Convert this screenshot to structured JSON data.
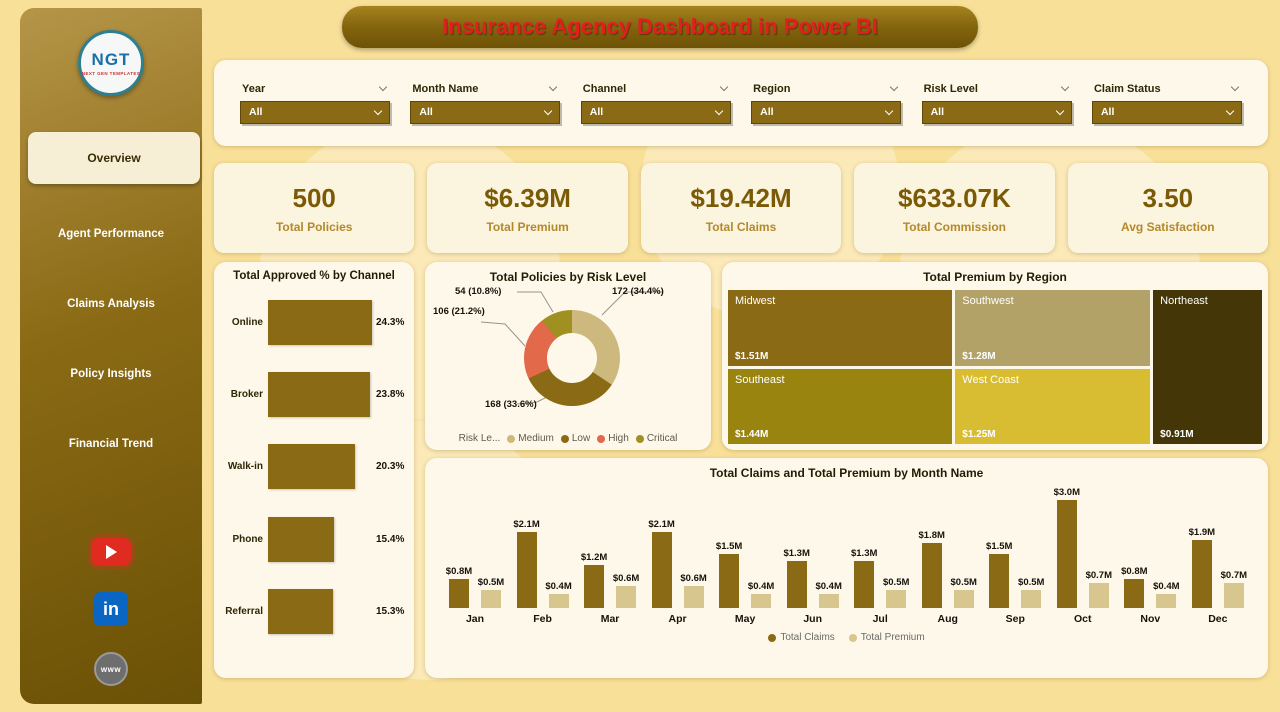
{
  "header": {
    "title": "Insurance Agency Dashboard in Power BI"
  },
  "sidebar": {
    "logo": {
      "text": "NGT",
      "subtext": "NEXT GEN TEMPLATES"
    },
    "items": [
      {
        "label": "Overview"
      },
      {
        "label": "Agent Performance"
      },
      {
        "label": "Claims Analysis"
      },
      {
        "label": "Policy Insights"
      },
      {
        "label": "Financial Trend"
      }
    ],
    "social": {
      "linkedin": "in",
      "website": "www"
    }
  },
  "filters": [
    {
      "label": "Year",
      "value": "All"
    },
    {
      "label": "Month Name",
      "value": "All"
    },
    {
      "label": "Channel",
      "value": "All"
    },
    {
      "label": "Region",
      "value": "All"
    },
    {
      "label": "Risk Level",
      "value": "All"
    },
    {
      "label": "Claim Status",
      "value": "All"
    }
  ],
  "kpis": [
    {
      "value": "500",
      "label": "Total Policies"
    },
    {
      "value": "$6.39M",
      "label": "Total Premium"
    },
    {
      "value": "$19.42M",
      "label": "Total Claims"
    },
    {
      "value": "$633.07K",
      "label": "Total Commission"
    },
    {
      "value": "3.50",
      "label": "Avg Satisfaction"
    }
  ],
  "chart_data": {
    "channel_bars": {
      "type": "bar",
      "title": "Total Approved % by Channel",
      "categories": [
        "Online",
        "Broker",
        "Walk-in",
        "Phone",
        "Referral"
      ],
      "values": [
        24.3,
        23.8,
        20.3,
        15.4,
        15.3
      ],
      "unit": "%",
      "bar_color": "#8a6a14",
      "orientation": "horizontal"
    },
    "donut": {
      "type": "pie",
      "title": "Total Policies by Risk Level",
      "legend_title": "Risk Le...",
      "legend_position": "bottom",
      "categories": [
        "Medium",
        "Low",
        "High",
        "Critical"
      ],
      "values": [
        172,
        168,
        106,
        54
      ],
      "percents": [
        34.4,
        33.6,
        21.2,
        10.8
      ],
      "colors": [
        "#cdb97e",
        "#8a6a14",
        "#e2694a",
        "#a09022"
      ],
      "callouts": [
        {
          "text": "172 (34.4%)"
        },
        {
          "text": "54 (10.8%)"
        },
        {
          "text": "106 (21.2%)"
        },
        {
          "text": "168 (33.6%)"
        }
      ]
    },
    "treemap": {
      "type": "treemap",
      "title": "Total Premium by Region",
      "cells": [
        {
          "name": "Midwest",
          "value": "$1.51M",
          "color": "#8a6a14"
        },
        {
          "name": "Southwest",
          "value": "$1.28M",
          "color": "#b2a268"
        },
        {
          "name": "Northeast",
          "value": "$0.91M",
          "color": "#453608"
        },
        {
          "name": "Southeast",
          "value": "$1.44M",
          "color": "#9a8410"
        },
        {
          "name": "West Coast",
          "value": "$1.25M",
          "color": "#d8bd33"
        }
      ]
    },
    "monthly": {
      "type": "bar",
      "title": "Total Claims and Total Premium by Month Name",
      "categories": [
        "Jan",
        "Feb",
        "Mar",
        "Apr",
        "May",
        "Jun",
        "Jul",
        "Aug",
        "Sep",
        "Oct",
        "Nov",
        "Dec"
      ],
      "series": [
        {
          "name": "Total Claims",
          "color": "#8a6a14",
          "values": [
            0.8,
            2.1,
            1.2,
            2.1,
            1.5,
            1.3,
            1.3,
            1.8,
            1.5,
            3.0,
            0.8,
            1.9
          ]
        },
        {
          "name": "Total Premium",
          "color": "#d8c68f",
          "values": [
            0.5,
            0.4,
            0.6,
            0.6,
            0.4,
            0.4,
            0.5,
            0.5,
            0.5,
            0.7,
            0.4,
            0.7
          ]
        }
      ],
      "value_prefix": "$",
      "value_suffix": "M",
      "ylim": [
        0,
        3.0
      ],
      "legend_position": "bottom"
    }
  }
}
